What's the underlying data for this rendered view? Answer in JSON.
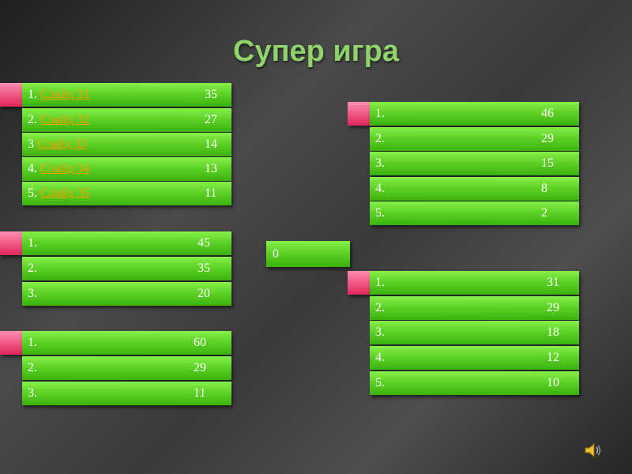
{
  "title": "Супер игра",
  "total": 0,
  "groups": [
    {
      "rows": [
        {
          "label": "1.",
          "link": "Слайд 31",
          "score": 35
        },
        {
          "label": "2.",
          "link": "Слайд 32",
          "score": 27
        },
        {
          "label": "3",
          "link": "Слайд 33",
          "score": 14
        },
        {
          "label": "4.",
          "link": "Слайд 34",
          "score": 13
        },
        {
          "label": "5.",
          "link": "Слайд 35",
          "score": 11
        }
      ]
    },
    {
      "rows": [
        {
          "label": "1.",
          "score": 45
        },
        {
          "label": "2.",
          "score": 35
        },
        {
          "label": "3.",
          "score": 20
        }
      ]
    },
    {
      "rows": [
        {
          "label": "1.",
          "score": 60
        },
        {
          "label": "2.",
          "score": 29
        },
        {
          "label": "3.",
          "score": 11
        }
      ]
    },
    {
      "rows": [
        {
          "label": "1.",
          "score": 46
        },
        {
          "label": "2.",
          "score": 29
        },
        {
          "label": "3.",
          "score": 15
        },
        {
          "label": "4.",
          "score": 8
        },
        {
          "label": "5.",
          "score": 2
        }
      ]
    },
    {
      "rows": [
        {
          "label": "1.",
          "score": 31
        },
        {
          "label": "2.",
          "score": 29
        },
        {
          "label": "3.",
          "score": 18
        },
        {
          "label": "4.",
          "score": 12
        },
        {
          "label": "5.",
          "score": 10
        }
      ]
    }
  ]
}
